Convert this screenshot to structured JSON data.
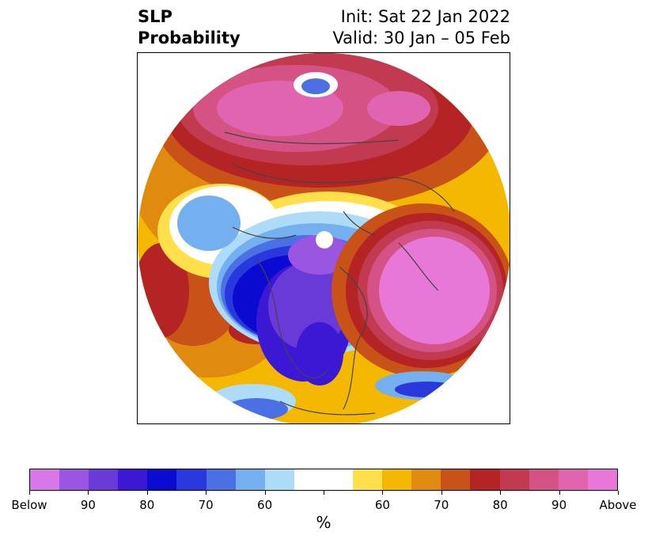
{
  "title": {
    "left_line1": "SLP",
    "left_line2": "Probability",
    "right_line1": "Init: Sat 22 Jan 2022",
    "right_line2": "Valid: 30 Jan – 05 Feb"
  },
  "colorbar": {
    "unit": "%",
    "colors": [
      "#d878e8",
      "#9a56e0",
      "#6a3ad8",
      "#3a18d4",
      "#0a0ad0",
      "#2838dc",
      "#4a70e4",
      "#74b0f0",
      "#aedcf8",
      "#ffffff",
      "#ffffff",
      "#ffe04a",
      "#f4b800",
      "#e08a10",
      "#c85218",
      "#b42424",
      "#c23a50",
      "#d45284",
      "#e064b0",
      "#e878d8"
    ],
    "tick_labels": [
      "Below",
      "90",
      "80",
      "70",
      "60",
      "",
      "60",
      "70",
      "80",
      "90",
      "Above"
    ]
  },
  "legend_scale": {
    "below_color": "#d878e8",
    "above_color": "#e878d8"
  }
}
